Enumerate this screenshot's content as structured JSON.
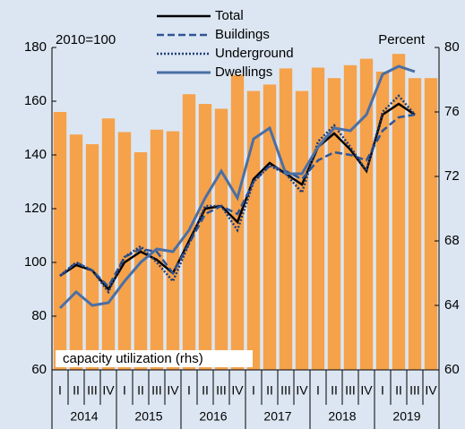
{
  "chart_data": {
    "type": "bar",
    "left_note": "2010=100",
    "right_note": "Percent",
    "categories": [
      "I",
      "II",
      "III",
      "IV",
      "I",
      "II",
      "III",
      "IV",
      "I",
      "II",
      "III",
      "IV",
      "I",
      "II",
      "III",
      "IV",
      "I",
      "II",
      "III",
      "IV",
      "I",
      "II",
      "III",
      "IV"
    ],
    "years": [
      "2014",
      "2015",
      "2016",
      "2017",
      "2018",
      "2019"
    ],
    "ylim": [
      60,
      180
    ],
    "yticks": [
      60,
      80,
      100,
      120,
      140,
      160,
      180
    ],
    "y2lim": [
      60,
      80
    ],
    "y2ticks": [
      60,
      64,
      68,
      72,
      76,
      80
    ],
    "series": [
      {
        "name": "capacity utilization (rhs)",
        "type": "bar",
        "axis": "y2",
        "color": "#f5a24b",
        "values": [
          76,
          74.6,
          74,
          75.6,
          74.75,
          73.5,
          74.9,
          74.8,
          77.1,
          76.5,
          76.2,
          78.3,
          77.3,
          77.7,
          78.7,
          77.3,
          78.75,
          78.1,
          78.9,
          79.3,
          78.5,
          79.6,
          78.1,
          78.1
        ]
      },
      {
        "name": "Total",
        "type": "line",
        "color": "#000000",
        "dash": "solid",
        "width": 2.5,
        "values": [
          95,
          99,
          97,
          90,
          100,
          104,
          101,
          96,
          108,
          120,
          121,
          115,
          131,
          137,
          133,
          129,
          143,
          148,
          142,
          134,
          155,
          159,
          155,
          null
        ]
      },
      {
        "name": "Buildings",
        "type": "line",
        "color": "#2f5597",
        "dash": "dashed",
        "width": 2.5,
        "values": [
          95,
          100,
          97,
          91,
          102,
          105,
          104,
          96,
          107,
          118,
          121,
          118,
          130,
          136,
          134,
          131,
          138,
          141,
          140,
          138,
          149,
          154,
          155,
          null
        ]
      },
      {
        "name": "Underground",
        "type": "line",
        "color": "#1f3c78",
        "dash": "dotted",
        "width": 2.5,
        "values": [
          95,
          100,
          97,
          89,
          102,
          106,
          100,
          93,
          107,
          121,
          121,
          112,
          130,
          136,
          133,
          126,
          145,
          151,
          143,
          134,
          156,
          162,
          155,
          null
        ]
      },
      {
        "name": "Dwellings",
        "type": "line",
        "color": "#4a6fa5",
        "dash": "solid",
        "width": 3,
        "values": [
          83,
          89,
          84,
          85,
          93,
          100,
          105,
          104,
          112,
          124,
          134,
          124,
          146,
          150,
          133,
          133,
          143,
          150,
          149,
          155,
          170,
          173,
          171,
          null
        ]
      }
    ]
  }
}
